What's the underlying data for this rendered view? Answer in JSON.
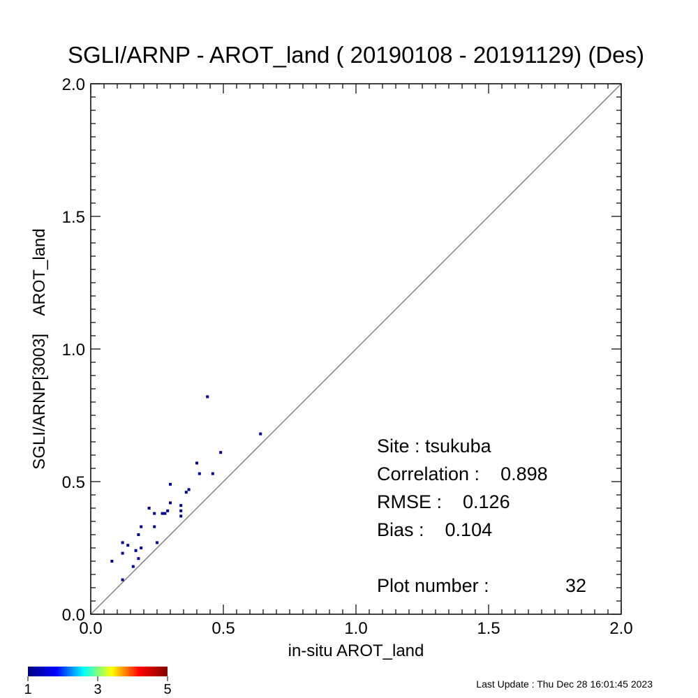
{
  "chart_data": {
    "type": "scatter",
    "title": "SGLI/ARNP - AROT_land ( 20190108 - 20191129) (Des)",
    "xlabel": "in-situ AROT_land",
    "ylabel": "SGLI/ARNP[3003]    AROT_land",
    "xlim": [
      0,
      2.0
    ],
    "ylim": [
      0,
      2.0
    ],
    "x_ticks": [
      "0.0",
      "0.5",
      "1.0",
      "1.5",
      "2.0"
    ],
    "y_ticks": [
      "0.0",
      "0.5",
      "1.0",
      "1.5",
      "2.0"
    ],
    "one_to_one_line": true,
    "grid": false,
    "point_color": "#00008f",
    "points": [
      {
        "x": 0.08,
        "y": 0.2
      },
      {
        "x": 0.12,
        "y": 0.27
      },
      {
        "x": 0.12,
        "y": 0.13
      },
      {
        "x": 0.12,
        "y": 0.23
      },
      {
        "x": 0.14,
        "y": 0.26
      },
      {
        "x": 0.16,
        "y": 0.18
      },
      {
        "x": 0.17,
        "y": 0.24
      },
      {
        "x": 0.18,
        "y": 0.3
      },
      {
        "x": 0.18,
        "y": 0.21
      },
      {
        "x": 0.19,
        "y": 0.33
      },
      {
        "x": 0.19,
        "y": 0.25
      },
      {
        "x": 0.22,
        "y": 0.4
      },
      {
        "x": 0.24,
        "y": 0.38
      },
      {
        "x": 0.24,
        "y": 0.33
      },
      {
        "x": 0.25,
        "y": 0.27
      },
      {
        "x": 0.27,
        "y": 0.38
      },
      {
        "x": 0.28,
        "y": 0.38
      },
      {
        "x": 0.29,
        "y": 0.39
      },
      {
        "x": 0.3,
        "y": 0.49
      },
      {
        "x": 0.3,
        "y": 0.42
      },
      {
        "x": 0.34,
        "y": 0.41
      },
      {
        "x": 0.34,
        "y": 0.39
      },
      {
        "x": 0.34,
        "y": 0.37
      },
      {
        "x": 0.36,
        "y": 0.46
      },
      {
        "x": 0.37,
        "y": 0.47
      },
      {
        "x": 0.4,
        "y": 0.57
      },
      {
        "x": 0.41,
        "y": 0.53
      },
      {
        "x": 0.44,
        "y": 0.82
      },
      {
        "x": 0.46,
        "y": 0.53
      },
      {
        "x": 0.49,
        "y": 0.61
      },
      {
        "x": 0.64,
        "y": 0.68
      }
    ],
    "stats": {
      "site": "Site : tsukuba",
      "correlation": "Correlation :    0.898",
      "rmse": "RMSE :    0.126",
      "bias": "Bias :    0.104",
      "plot_number": "Plot number :",
      "plot_number_value": "32"
    },
    "colorbar": {
      "labels": [
        "1",
        "3",
        "5"
      ],
      "colors": [
        "#00007f",
        "#0000ff",
        "#00ffff",
        "#ffff00",
        "#ff0000",
        "#7f0000"
      ]
    },
    "axis_color": "#000000",
    "line_color": "#808080"
  },
  "footer": {
    "last_update": "Last Update : Thu Dec 28 16:01:45 2023"
  }
}
